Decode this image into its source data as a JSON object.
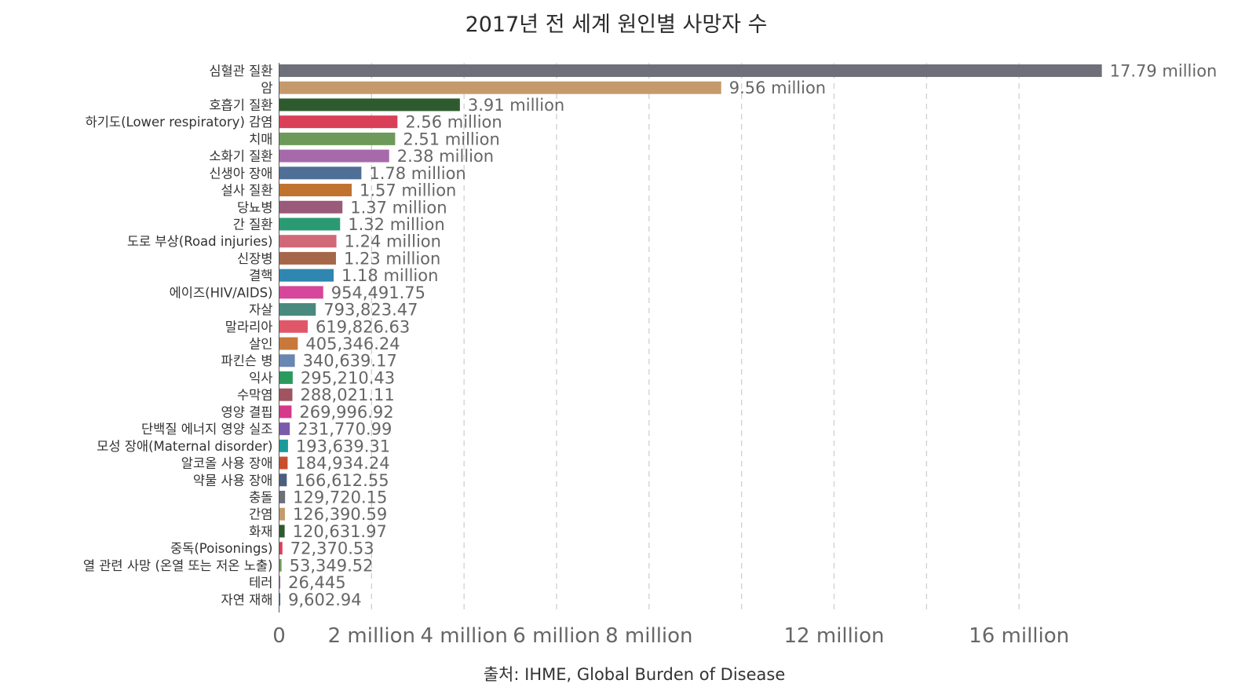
{
  "chart_data": {
    "type": "bar",
    "orientation": "horizontal",
    "title": "2017년 전 세계 원인별 사망자 수",
    "source": "출처: IHME, Global Burden of Disease",
    "xlabel": "",
    "ylabel": "",
    "xlim": [
      0,
      18000000
    ],
    "grid": true,
    "x_ticks": [
      {
        "value": 0,
        "label": "0"
      },
      {
        "value": 2000000,
        "label": "2 million"
      },
      {
        "value": 4000000,
        "label": "4 million"
      },
      {
        "value": 6000000,
        "label": "6 million"
      },
      {
        "value": 8000000,
        "label": "8 million"
      },
      {
        "value": 12000000,
        "label": "12 million"
      },
      {
        "value": 16000000,
        "label": "16 million"
      }
    ],
    "gridlines": [
      2000000,
      4000000,
      6000000,
      8000000,
      10000000,
      12000000,
      14000000,
      16000000
    ],
    "bars": [
      {
        "category": "심혈관 질환",
        "value": 17790000,
        "label": "17.79 million",
        "color": "#6d7079"
      },
      {
        "category": "암",
        "value": 9560000,
        "label": "9.56 million",
        "color": "#c49a6c"
      },
      {
        "category": "호흡기 질환",
        "value": 3910000,
        "label": "3.91 million",
        "color": "#2e5b2e"
      },
      {
        "category": "하기도(Lower respiratory) 감염",
        "value": 2560000,
        "label": "2.56 million",
        "color": "#d94058"
      },
      {
        "category": "치매",
        "value": 2510000,
        "label": "2.51 million",
        "color": "#6d9a5a"
      },
      {
        "category": "소화기 질환",
        "value": 2380000,
        "label": "2.38 million",
        "color": "#a66aaa"
      },
      {
        "category": "신생아 장애",
        "value": 1780000,
        "label": "1.78 million",
        "color": "#4f6f96"
      },
      {
        "category": "설사 질환",
        "value": 1570000,
        "label": "1.57 million",
        "color": "#c0732e"
      },
      {
        "category": "당뇨병",
        "value": 1370000,
        "label": "1.37 million",
        "color": "#9a5a7a"
      },
      {
        "category": "간 질환",
        "value": 1320000,
        "label": "1.32 million",
        "color": "#2a9a72"
      },
      {
        "category": "도로 부상(Road injuries)",
        "value": 1240000,
        "label": "1.24 million",
        "color": "#d06878"
      },
      {
        "category": "신장병",
        "value": 1230000,
        "label": "1.23 million",
        "color": "#a6664a"
      },
      {
        "category": "결핵",
        "value": 1180000,
        "label": "1.18 million",
        "color": "#2f86b0"
      },
      {
        "category": "에이즈(HIV/AIDS)",
        "value": 954491.75,
        "label": "954,491.75",
        "color": "#d6469a"
      },
      {
        "category": "자살",
        "value": 793823.47,
        "label": "793,823.47",
        "color": "#4a8a7e"
      },
      {
        "category": "말라리아",
        "value": 619826.63,
        "label": "619,826.63",
        "color": "#e05868"
      },
      {
        "category": "살인",
        "value": 405346.24,
        "label": "405,346.24",
        "color": "#c8783a"
      },
      {
        "category": "파킨슨 병",
        "value": 340639.17,
        "label": "340,639.17",
        "color": "#6a86b2"
      },
      {
        "category": "익사",
        "value": 295210.43,
        "label": "295,210.43",
        "color": "#2a9a5e"
      },
      {
        "category": "수막염",
        "value": 288021.11,
        "label": "288,021.11",
        "color": "#a05460"
      },
      {
        "category": "영양 결핍",
        "value": 269996.92,
        "label": "269,996.92",
        "color": "#d6388a"
      },
      {
        "category": "단백질 에너지 영양 실조",
        "value": 231770.99,
        "label": "231,770.99",
        "color": "#7a5aaa"
      },
      {
        "category": "모성 장애(Maternal disorder)",
        "value": 193639.31,
        "label": "193,639.31",
        "color": "#1a9a9a"
      },
      {
        "category": "알코올 사용 장애",
        "value": 184934.24,
        "label": "184,934.24",
        "color": "#c84e2e"
      },
      {
        "category": "약물 사용 장애",
        "value": 166612.55,
        "label": "166,612.55",
        "color": "#4a5e7e"
      },
      {
        "category": "충돌",
        "value": 129720.15,
        "label": "129,720.15",
        "color": "#6d7079"
      },
      {
        "category": "간염",
        "value": 126390.59,
        "label": "126,390.59",
        "color": "#c49a6c"
      },
      {
        "category": "화재",
        "value": 120631.97,
        "label": "120,631.97",
        "color": "#2e5b2e"
      },
      {
        "category": "중독(Poisonings)",
        "value": 72370.53,
        "label": "72,370.53",
        "color": "#d94058"
      },
      {
        "category": "열 관련 사망 (온열 또는 저온 노출)",
        "value": 53349.52,
        "label": "53,349.52",
        "color": "#6d9a5a"
      },
      {
        "category": "테러",
        "value": 26445,
        "label": "26,445",
        "color": "#a66aaa"
      },
      {
        "category": "자연 재해",
        "value": 9602.94,
        "label": "9,602.94",
        "color": "#4f6f96"
      }
    ]
  }
}
